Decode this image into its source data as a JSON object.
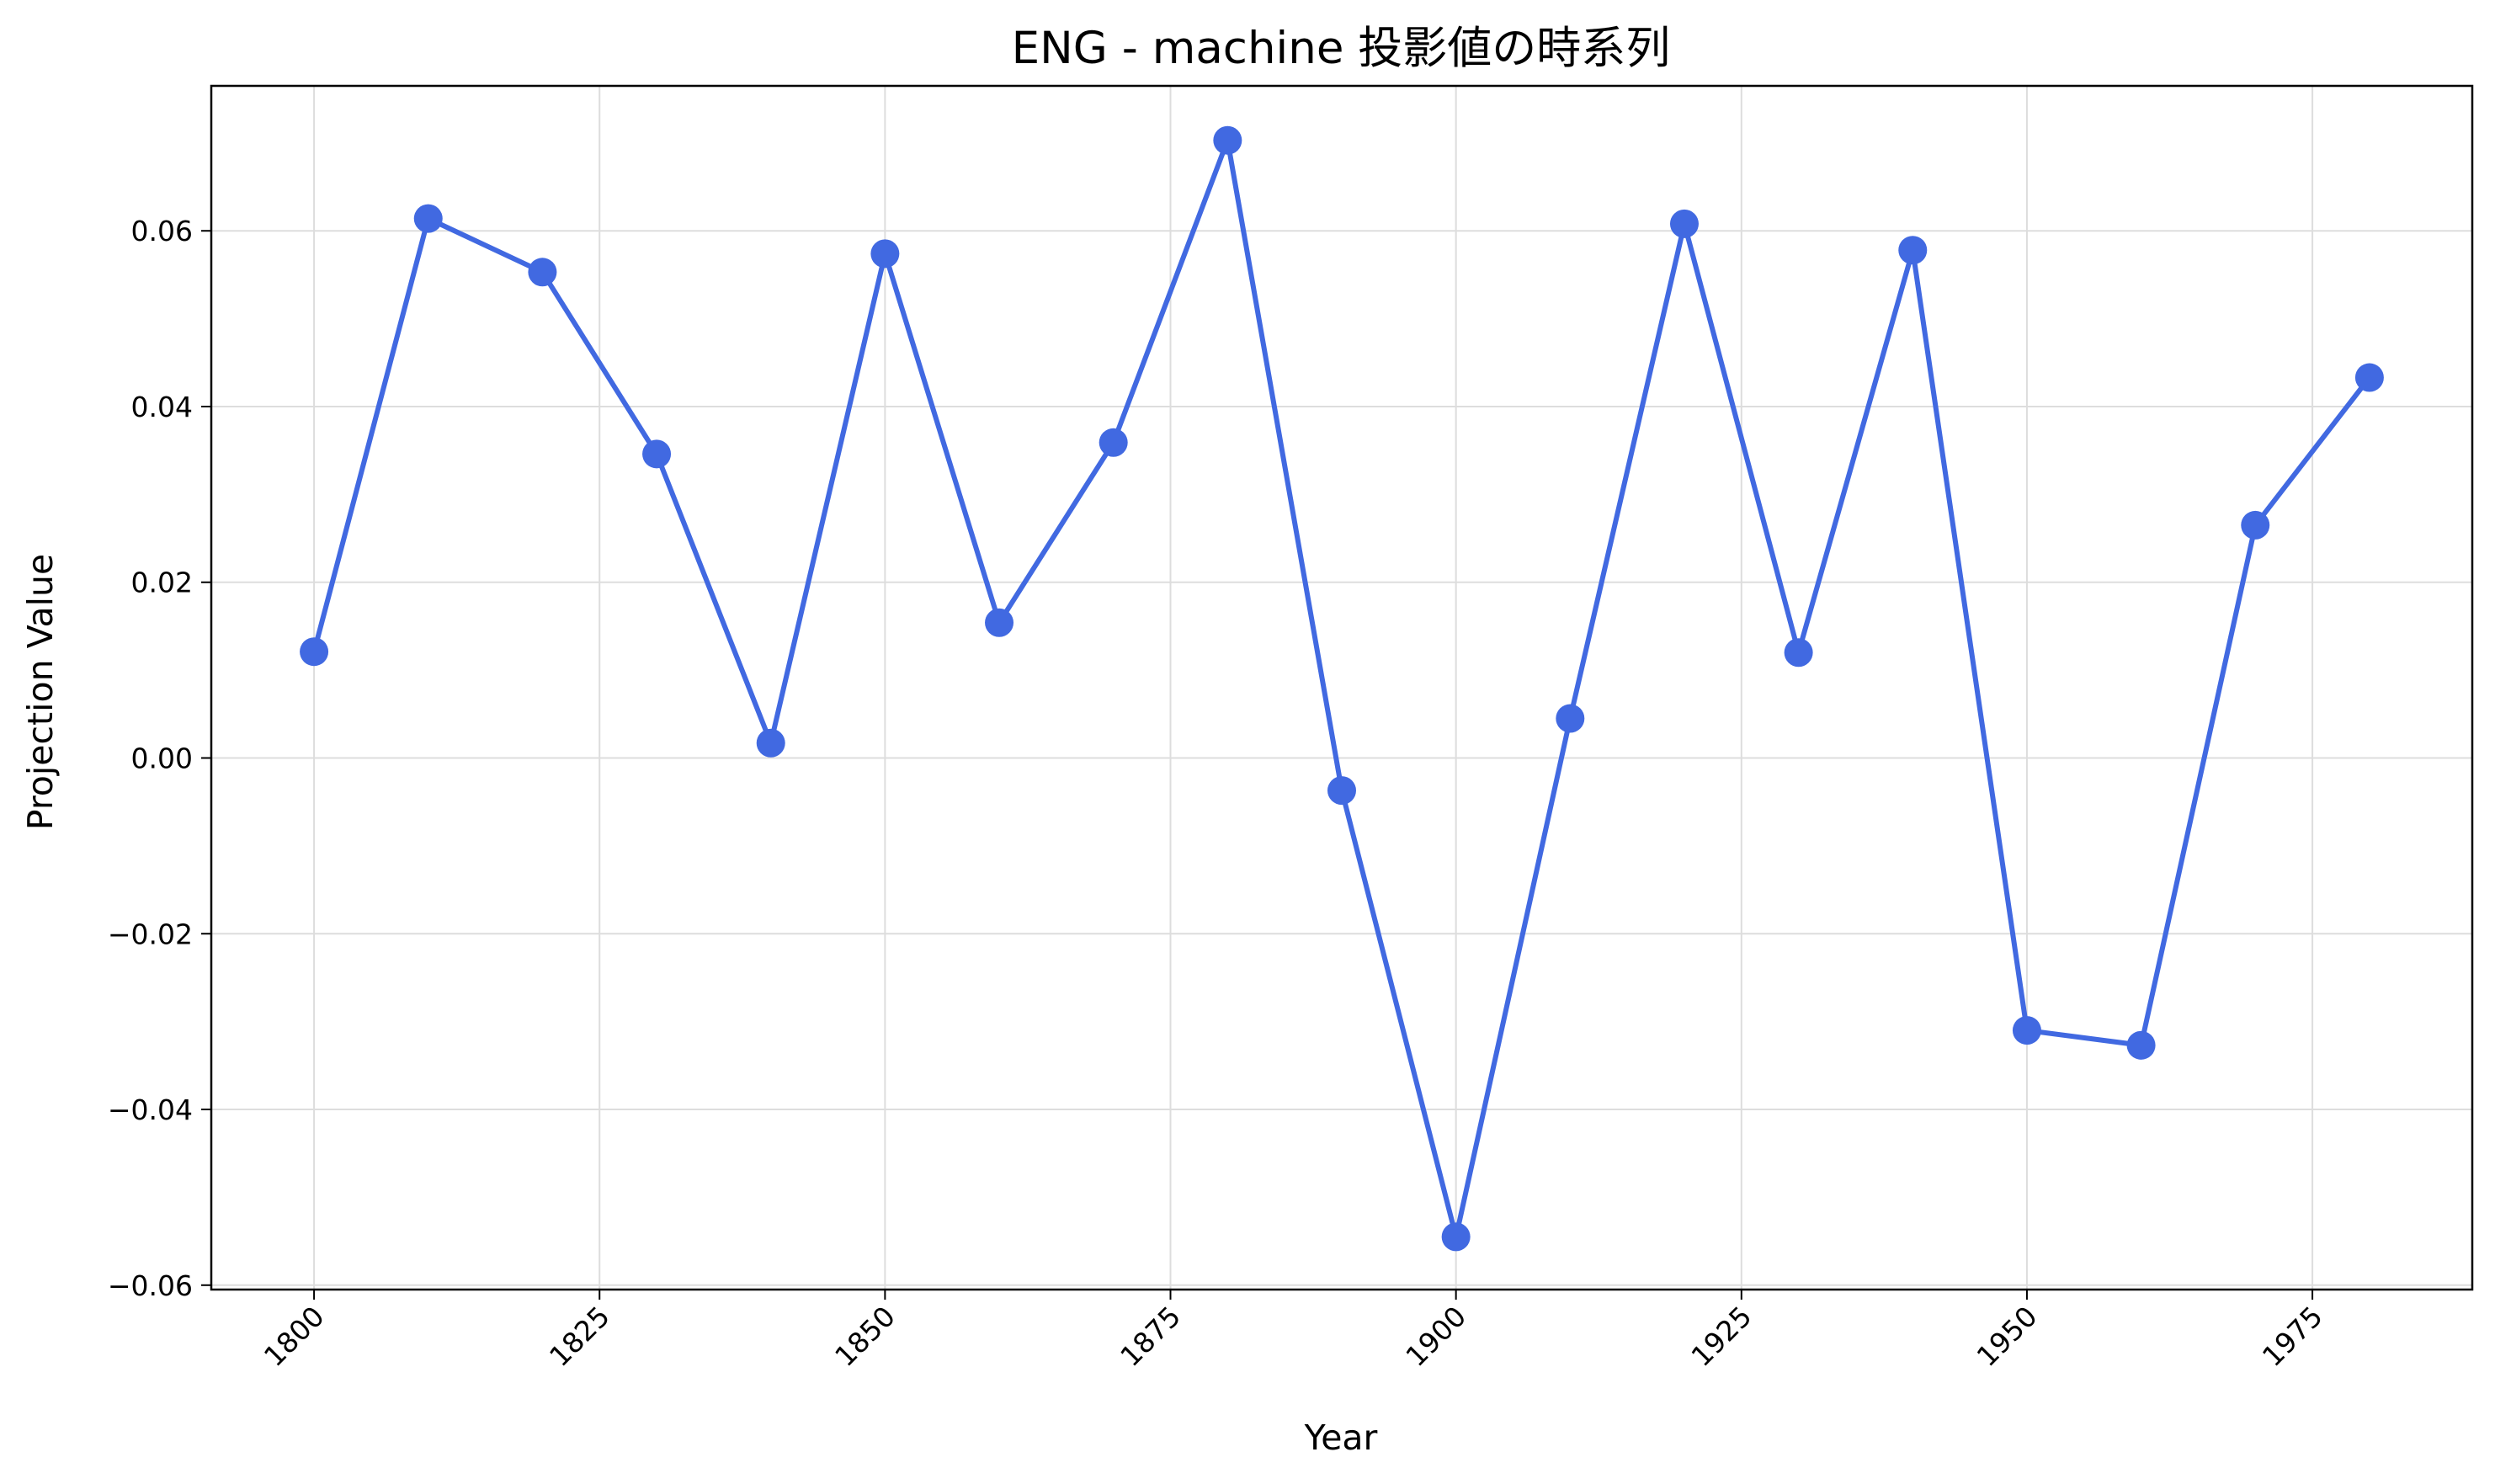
{
  "chart_data": {
    "type": "line",
    "title": "ENG - machine 投影値の時系列",
    "xlabel": "Year",
    "ylabel": "Projection Value",
    "xlim": [
      1791,
      1989
    ],
    "ylim": [
      -0.0605,
      0.0765
    ],
    "x_ticks": [
      1800,
      1825,
      1850,
      1875,
      1900,
      1925,
      1950,
      1975
    ],
    "y_ticks": [
      -0.06,
      -0.04,
      -0.02,
      0.0,
      0.02,
      0.04,
      0.06
    ],
    "y_tick_labels": [
      "−0.06",
      "−0.04",
      "−0.02",
      "0.00",
      "0.02",
      "0.04",
      "0.06"
    ],
    "grid": true,
    "series": [
      {
        "color": "#4169e1",
        "x": [
          1800,
          1810,
          1820,
          1830,
          1840,
          1850,
          1860,
          1870,
          1880,
          1890,
          1900,
          1910,
          1920,
          1930,
          1940,
          1950,
          1960,
          1970,
          1980
        ],
        "values": [
          0.0121,
          0.0614,
          0.0553,
          0.0346,
          0.0017,
          0.0574,
          0.0154,
          0.0359,
          0.0703,
          -0.0037,
          -0.0545,
          0.0045,
          0.0608,
          0.012,
          0.0578,
          -0.031,
          -0.0327,
          0.0265,
          0.0433
        ]
      }
    ]
  }
}
